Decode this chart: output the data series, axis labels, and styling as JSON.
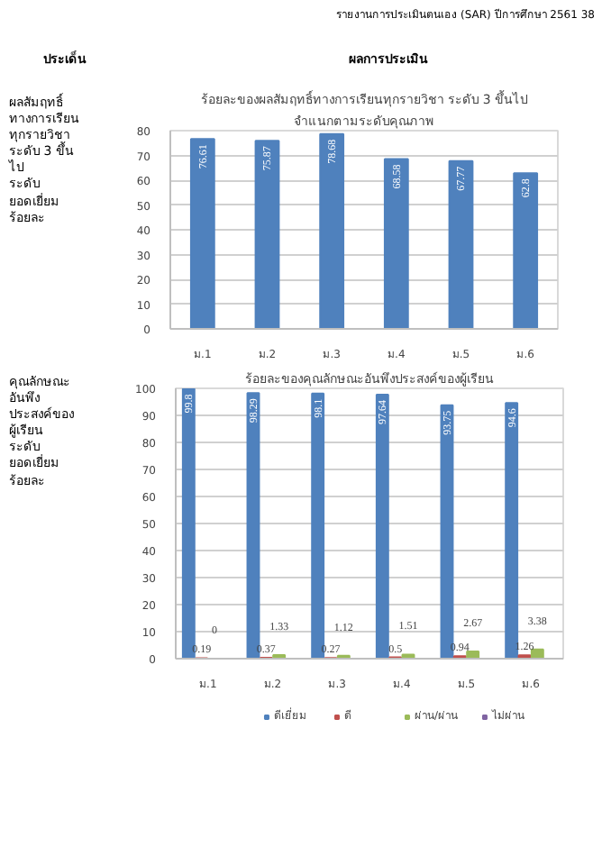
{
  "chart_data": [
    {
      "type": "bar",
      "title": "ร้อยละของผลสัมฤทธิ์ทางการเรียนทุกรายวิชา ระดับ 3 ขึ้นไป",
      "subtitle": "จำแนกตามระดับคุณภาพ",
      "categories": [
        "ม.1",
        "ม.2",
        "ม.3",
        "ม.4",
        "ม.5",
        "ม.6"
      ],
      "series": [
        {
          "color": "#4f81bd",
          "values": [
            76.61,
            75.87,
            78.68,
            68.58,
            67.77,
            62.8
          ]
        }
      ],
      "ylim": [
        0,
        80
      ],
      "yticks": [
        0,
        10,
        20,
        30,
        40,
        50,
        60,
        70,
        80
      ],
      "grid": "y",
      "data_labels": true,
      "annotations": [
        "รายงานการประเมินตนเอง (SAR) ปีการศึกษา 2561   38",
        "ประเด็น",
        "ผลการประเมิน",
        "ผลสัมฤทธิ์",
        "ทางการเรียน",
        "ทุกรายวิชา",
        "ระดับ 3 ขึ้น",
        "ไป",
        "ระดับ",
        "ยอดเยี่ยม",
        "ร้อยละ"
      ]
    },
    {
      "type": "bar",
      "title": "ร้อยละของคุณลักษณะอันพึงประสงค์ของผู้เรียน",
      "categories": [
        "ม.1",
        "ม.2",
        "ม.3",
        "ม.4",
        "ม.5",
        "ม.6"
      ],
      "series": [
        {
          "name": "ดีเยี่ยม",
          "color": "#4f81bd",
          "values": [
            99.8,
            98.29,
            98.1,
            97.64,
            93.75,
            94.6
          ]
        },
        {
          "name": "ดี",
          "color": "#c0504d",
          "values": [
            0.19,
            0.37,
            0.27,
            0.5,
            0.94,
            1.26
          ]
        },
        {
          "name": "ผ่าน/ผ่าน",
          "color": "#9bbb59",
          "values": [
            0,
            1.33,
            1.12,
            1.51,
            2.67,
            3.38
          ]
        },
        {
          "name": "ไม่ผ่าน",
          "color": "#8064a2",
          "values": [
            null,
            null,
            null,
            null,
            null,
            null
          ]
        }
      ],
      "ylim": [
        0,
        100
      ],
      "yticks": [
        0,
        10,
        20,
        30,
        40,
        50,
        60,
        70,
        80,
        90,
        100
      ],
      "grid": "y",
      "data_labels": true,
      "legend": "bottom",
      "annotations": [
        "คุณลักษณะ",
        "อันพึง",
        "ประสงค์ของ",
        "ผู้เรียน",
        "ระดับ",
        "ยอดเยี่ยม",
        "ร้อยละ"
      ]
    }
  ]
}
